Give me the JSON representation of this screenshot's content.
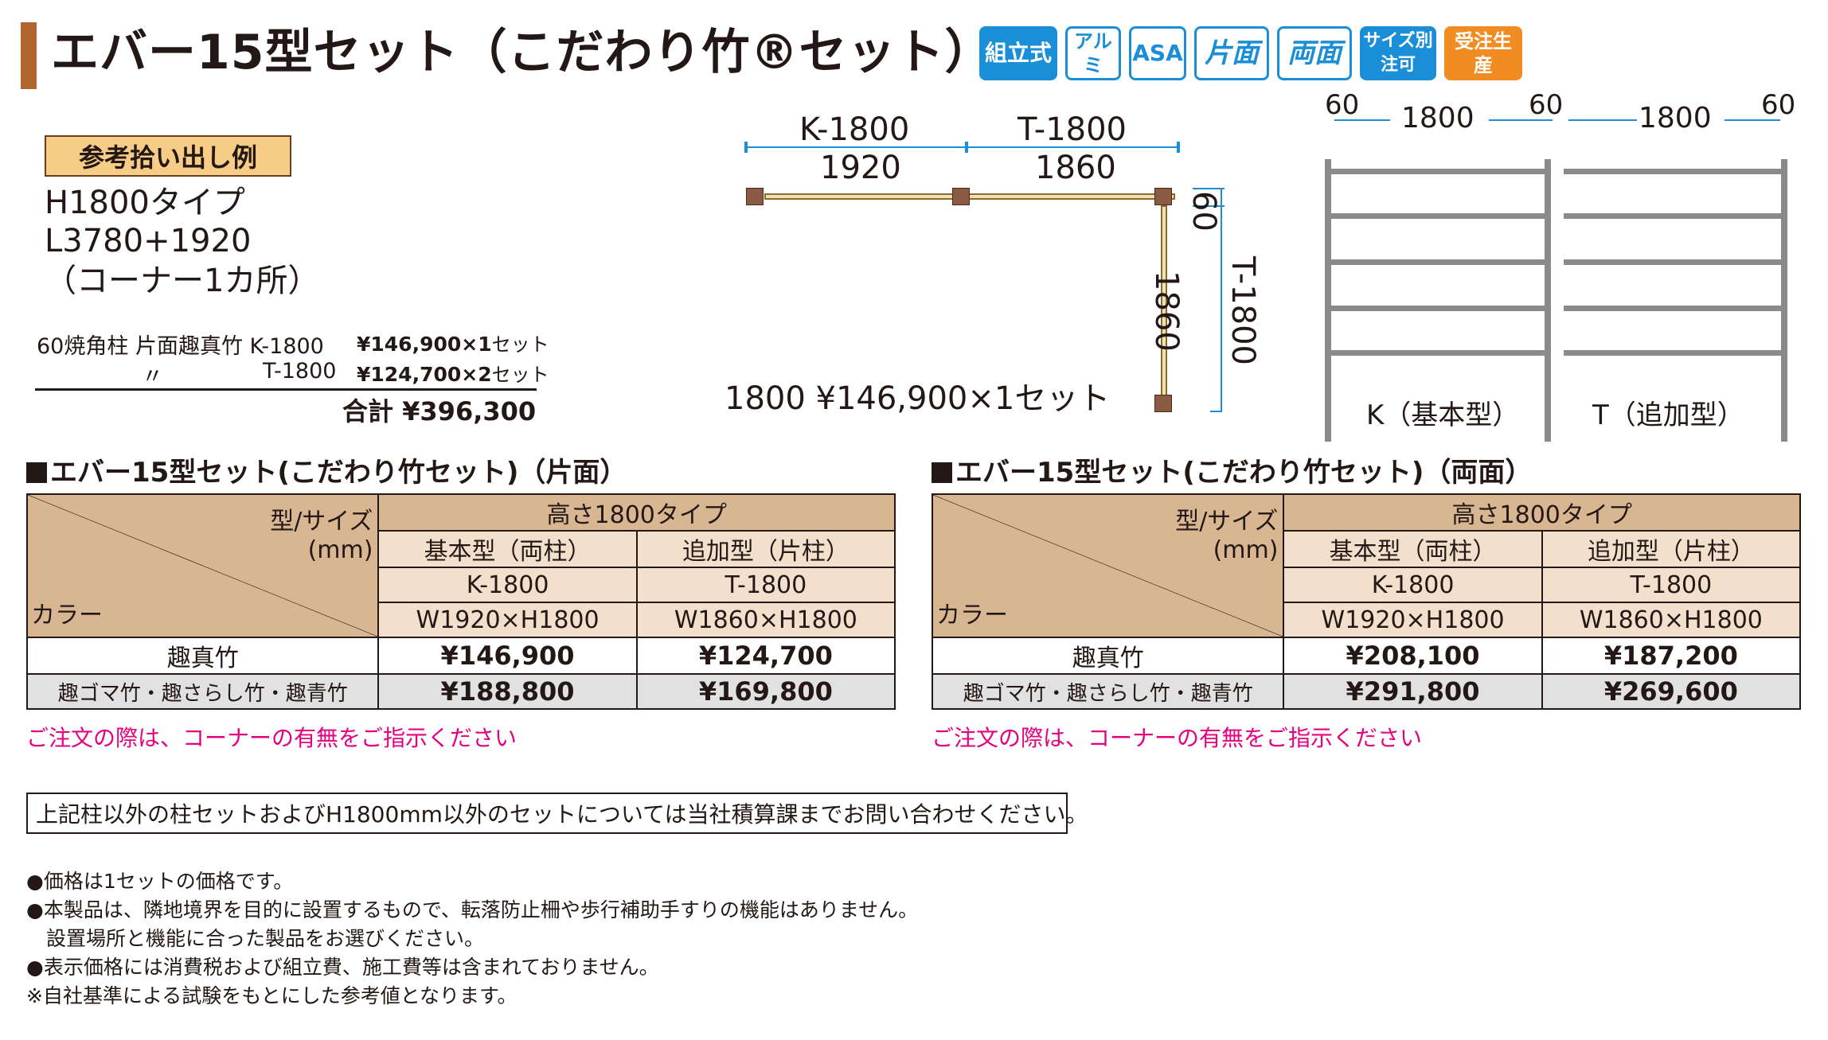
{
  "header": {
    "title": "エバー15型セット（こだわり竹®セット）",
    "badges": [
      {
        "label": "組立式",
        "icon": "assembly-badge",
        "color": "#1a8ed6"
      },
      {
        "label": "アルミ",
        "icon": "aluminum-badge",
        "color": "#1a8ed6"
      },
      {
        "label": "ASA",
        "icon": "asa-badge",
        "color": "#1a8ed6"
      },
      {
        "label": "片面",
        "icon": "one-side-badge",
        "color": "#1a8ed6"
      },
      {
        "label": "両面",
        "icon": "both-sides-badge",
        "color": "#1a8ed6"
      },
      {
        "label": "サイズ別注可",
        "icon": "custom-size-badge",
        "color": "#1a8ed6"
      },
      {
        "label": "受注生産",
        "icon": "made-to-order-badge",
        "color": "#f08c21"
      }
    ]
  },
  "example": {
    "label": "参考拾い出し例",
    "type": "H1800タイプ",
    "length": "L3780+1920",
    "corner": "（コーナー1カ所）",
    "line1_desc": "60焼角柱 片面趣真竹 K-1800",
    "line1_price": "¥146,900×1",
    "line1_unit": "セット",
    "line2_ditto": "〃",
    "line2_desc": "T-1800",
    "line2_price": "¥124,700×2",
    "line2_unit": "セット",
    "total": "合計 ¥396,300",
    "overlay_text": "1800 ¥146,900×1セット"
  },
  "plan": {
    "k_label": "K-1800",
    "t_label": "T-1800",
    "k_width": "1920",
    "t_width": "1860",
    "side_post": "60",
    "side_width": "1860",
    "side_label": "T-1800"
  },
  "elevation": {
    "dims": [
      "60",
      "1800",
      "60",
      "1800",
      "60"
    ],
    "k_caption": "K（基本型）",
    "t_caption": "T（追加型）"
  },
  "tables": [
    {
      "title": "エバー15型セット(こだわり竹セット)（片面）",
      "corner_top": "型/サイズ",
      "corner_unit": "(mm)",
      "corner_bottom": "カラー",
      "height_type": "高さ1800タイプ",
      "col_types": [
        "基本型（両柱）",
        "追加型（片柱）"
      ],
      "col_codes": [
        "K-1800",
        "T-1800"
      ],
      "col_sizes": [
        "W1920×H1800",
        "W1860×H1800"
      ],
      "rows": [
        {
          "color": "趣真竹",
          "prices": [
            "¥146,900",
            "¥124,700"
          ]
        },
        {
          "color": "趣ゴマ竹・趣さらし竹・趣青竹",
          "prices": [
            "¥188,800",
            "¥169,800"
          ]
        }
      ],
      "note": "ご注文の際は、コーナーの有無をご指示ください"
    },
    {
      "title": "エバー15型セット(こだわり竹セット)（両面）",
      "corner_top": "型/サイズ",
      "corner_unit": "(mm)",
      "corner_bottom": "カラー",
      "height_type": "高さ1800タイプ",
      "col_types": [
        "基本型（両柱）",
        "追加型（片柱）"
      ],
      "col_codes": [
        "K-1800",
        "T-1800"
      ],
      "col_sizes": [
        "W1920×H1800",
        "W1860×H1800"
      ],
      "rows": [
        {
          "color": "趣真竹",
          "prices": [
            "¥208,100",
            "¥187,200"
          ]
        },
        {
          "color": "趣ゴマ竹・趣さらし竹・趣青竹",
          "prices": [
            "¥291,800",
            "¥269,600"
          ]
        }
      ],
      "note": "ご注文の際は、コーナーの有無をご指示ください"
    }
  ],
  "box_note": "上記柱以外の柱セットおよびH1800mm以外のセットについては当社積算課までお問い合わせください。",
  "footnotes": [
    "●価格は1セットの価格です。",
    "●本製品は、隣地境界を目的に設置するもので、転落防止柵や歩行補助手すりの機能はありません。",
    "　設置場所と機能に合った製品をお選びください。",
    "●表示価格には消費税および組立費、施工費等は含まれておりません。",
    "※自社基準による試験をもとにした参考値となります。"
  ],
  "colors": {
    "accent_brown": "#b0662e",
    "badge_blue": "#1a8ed6",
    "badge_orange": "#f08c21",
    "table_header": "#d8b692",
    "table_subheader": "#f2e0cc",
    "note_red": "#e4007f"
  }
}
